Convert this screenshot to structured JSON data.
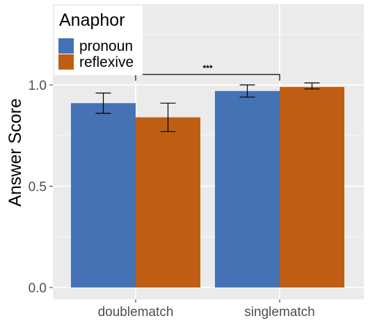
{
  "chart_data": {
    "type": "bar",
    "categories": [
      "doublematch",
      "singlematch"
    ],
    "series": [
      {
        "name": "pronoun",
        "values": [
          0.91,
          0.97
        ],
        "err_low": [
          0.86,
          0.94
        ],
        "err_high": [
          0.96,
          1.0
        ],
        "color": "#4472b4"
      },
      {
        "name": "reflexive",
        "values": [
          0.84,
          0.99
        ],
        "err_low": [
          0.77,
          0.98
        ],
        "err_high": [
          0.91,
          1.01
        ],
        "color": "#bf5e12"
      }
    ],
    "xlabel": "",
    "ylabel": "Answer Score",
    "ylim": [
      0,
      1.3
    ],
    "yticks": [
      0.0,
      0.5,
      1.0
    ],
    "ytick_labels": [
      "0.0",
      "0.5",
      "1.0"
    ],
    "legend": {
      "title": "Anaphor",
      "placement": "top-left"
    },
    "annotation": {
      "text": "***",
      "from": "pronoun/doublematch-right",
      "to": "singlematch-center"
    },
    "grid": true,
    "panel_background": "#ebebeb"
  }
}
